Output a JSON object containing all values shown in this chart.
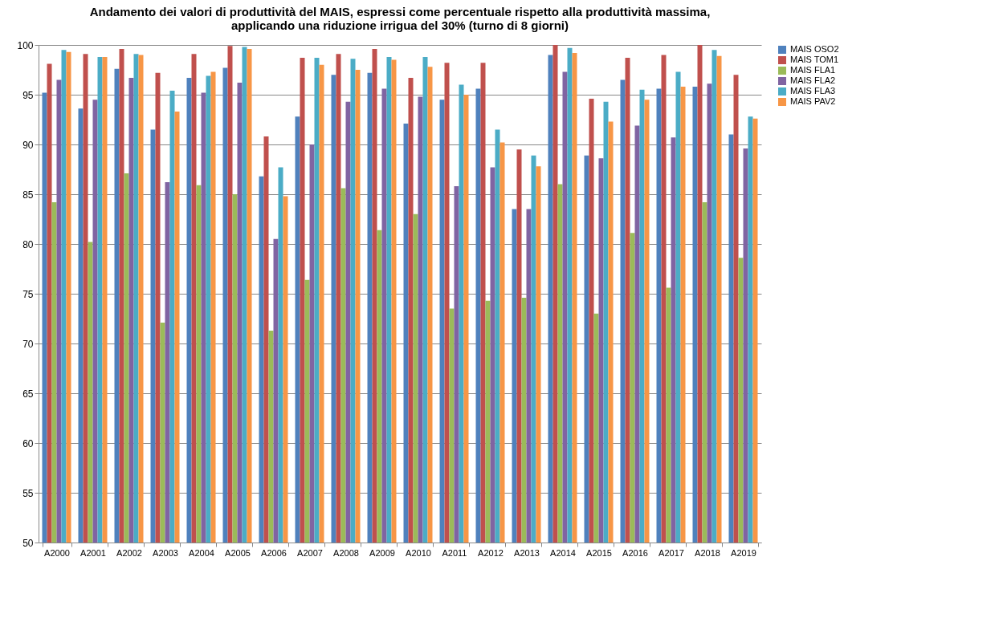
{
  "chart_data": {
    "type": "bar",
    "title": "Andamento dei valori di produttività del MAIS, espressi come percentuale rispetto alla produttività massima,\napplicando una riduzione irrigua del 30% (turno di 8 giorni)",
    "categories": [
      "A2000",
      "A2001",
      "A2002",
      "A2003",
      "A2004",
      "A2005",
      "A2006",
      "A2007",
      "A2008",
      "A2009",
      "A2010",
      "A2011",
      "A2012",
      "A2013",
      "A2014",
      "A2015",
      "A2016",
      "A2017",
      "A2018",
      "A2019"
    ],
    "series": [
      {
        "name": "MAIS OSO2",
        "color": "#4f81bd",
        "values": [
          95.2,
          93.6,
          97.6,
          91.5,
          96.7,
          97.7,
          86.8,
          92.8,
          97.0,
          97.2,
          92.1,
          94.5,
          95.6,
          83.5,
          99.0,
          88.9,
          96.5,
          95.6,
          95.8,
          91.0
        ]
      },
      {
        "name": "MAIS TOM1",
        "color": "#c0504d",
        "values": [
          98.1,
          99.1,
          99.6,
          97.2,
          99.1,
          99.9,
          90.8,
          98.7,
          99.1,
          99.6,
          96.7,
          98.2,
          98.2,
          89.5,
          100.0,
          94.6,
          98.7,
          99.0,
          100.0,
          97.0
        ]
      },
      {
        "name": "MAIS FLA1",
        "color": "#9bbb59",
        "values": [
          84.2,
          80.2,
          87.1,
          72.1,
          85.9,
          85.0,
          71.3,
          76.4,
          85.6,
          81.4,
          83.0,
          73.5,
          74.3,
          74.6,
          86.0,
          73.0,
          81.1,
          75.6,
          84.2,
          78.6
        ]
      },
      {
        "name": "MAIS FLA2",
        "color": "#8064a2",
        "values": [
          96.5,
          94.5,
          96.7,
          86.2,
          95.2,
          96.2,
          80.5,
          90.0,
          94.3,
          95.6,
          94.8,
          85.8,
          87.7,
          83.5,
          97.3,
          88.6,
          91.9,
          90.7,
          96.1,
          89.6
        ]
      },
      {
        "name": "MAIS FLA3",
        "color": "#4bacc6",
        "values": [
          99.5,
          98.8,
          99.1,
          95.4,
          96.9,
          99.8,
          87.7,
          98.7,
          98.6,
          98.8,
          98.8,
          96.0,
          91.5,
          88.9,
          99.7,
          94.3,
          95.5,
          97.3,
          99.5,
          92.8
        ]
      },
      {
        "name": "MAIS PAV2",
        "color": "#f79646",
        "values": [
          99.3,
          98.8,
          99.0,
          93.3,
          97.3,
          99.6,
          84.8,
          98.0,
          97.5,
          98.5,
          97.8,
          95.0,
          90.2,
          87.8,
          99.2,
          92.3,
          94.5,
          95.8,
          98.9,
          92.6
        ]
      }
    ],
    "ylim": [
      50,
      100
    ],
    "yticks": [
      50,
      55,
      60,
      65,
      70,
      75,
      80,
      85,
      90,
      95,
      100
    ],
    "grid": "y",
    "legend": "right"
  }
}
